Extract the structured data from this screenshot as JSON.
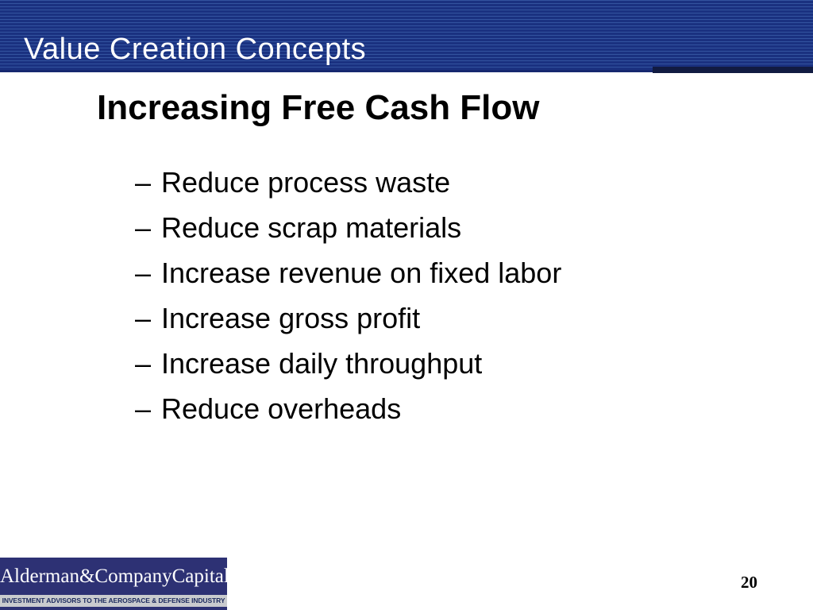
{
  "header": {
    "title": "Value Creation Concepts"
  },
  "main": {
    "title": "Increasing Free Cash Flow",
    "bullet_marker": "–",
    "bullets": [
      "Reduce process waste",
      "Reduce scrap materials",
      "Increase revenue on fixed labor",
      "Increase gross profit",
      "Increase daily throughput",
      "Reduce overheads"
    ]
  },
  "footer": {
    "logo": {
      "name": "Alderman&CompanyCapital",
      "tagline": "INVESTMENT ADVISORS TO THE AEROSPACE & DEFENSE INDUSTRY"
    },
    "page_number": "20"
  },
  "colors": {
    "header_stripe_dark": "#1a3180",
    "header_stripe_light": "#33539f",
    "header_underline": "#16276f",
    "header_accent_dark": "#111b42",
    "logo_navy": "#2d3174",
    "logo_gray": "#c9cbce",
    "body_text": "#000000",
    "header_text": "#ffffff"
  }
}
